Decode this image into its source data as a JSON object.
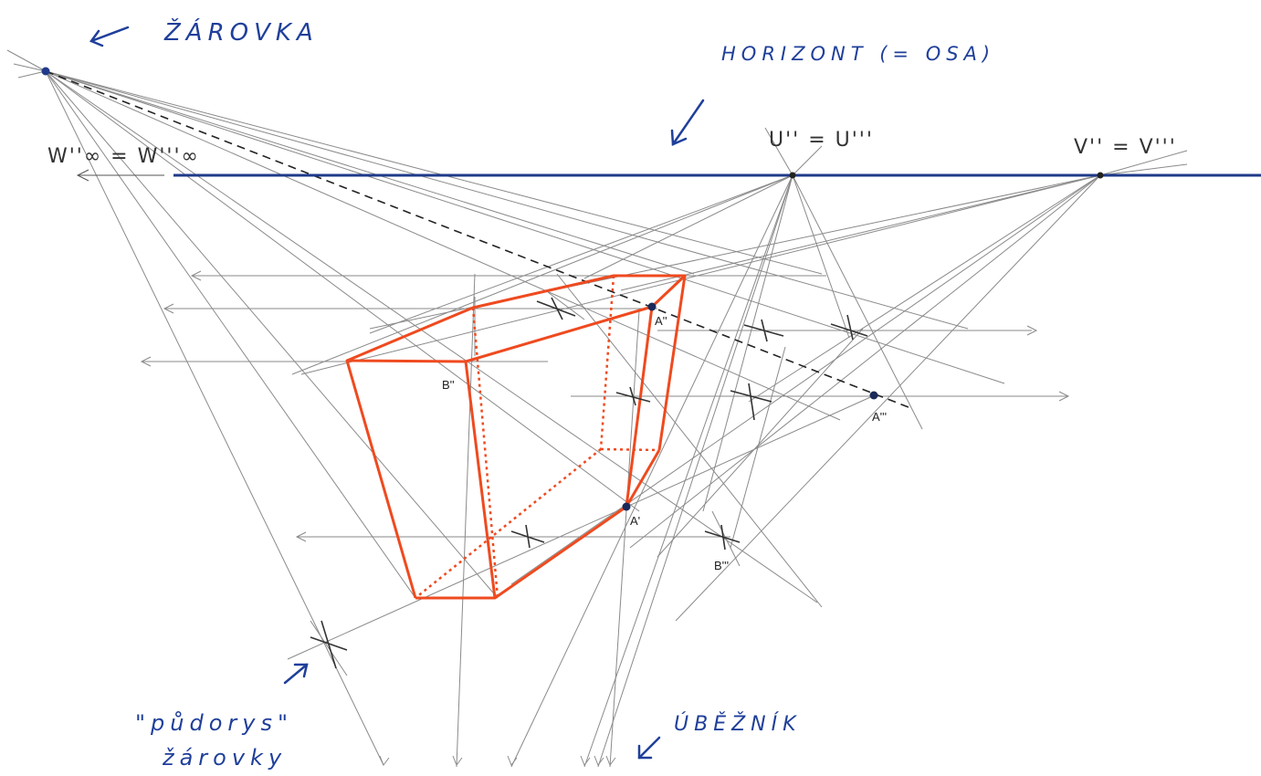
{
  "labels": {
    "zarovka": "ŽÁROVKA",
    "horizont": "HORIZONT (= OSA)",
    "w_symbol": "W''∞ = W'''∞",
    "u_symbol": "U'' = U'''",
    "v_symbol": "V'' = V'''",
    "pudorys_line1": "\"půdorys\"",
    "pudorys_line2": "žárovky",
    "ubeznik": "ÚBĚŽNÍK"
  },
  "points": {
    "a_double": "A''",
    "a_triple": "A'''",
    "a_single": "A'",
    "b_double": "B''",
    "b_triple": "B'''"
  },
  "colors": {
    "ink": "#1f3f9a",
    "horizon": "#1f3a8a",
    "solid": "#ef4a1f",
    "construction": "#8a8a8a"
  },
  "icons": [
    "arrow-to-bulb-icon",
    "arrow-to-horizon-icon",
    "arrow-to-plan-icon",
    "arrow-to-vanishing-icon"
  ]
}
